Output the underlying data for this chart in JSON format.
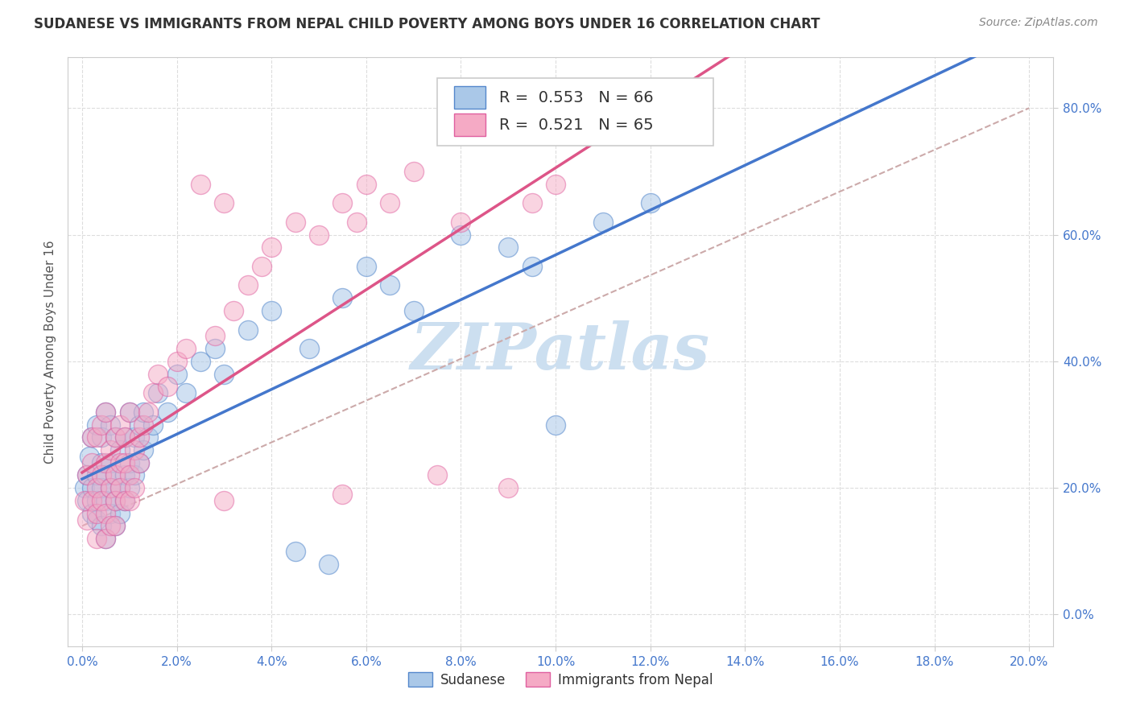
{
  "title": "SUDANESE VS IMMIGRANTS FROM NEPAL CHILD POVERTY AMONG BOYS UNDER 16 CORRELATION CHART",
  "source": "Source: ZipAtlas.com",
  "xlabel_ticks": [
    "0.0%",
    "2.0%",
    "4.0%",
    "6.0%",
    "8.0%",
    "10.0%",
    "12.0%",
    "14.0%",
    "16.0%",
    "18.0%",
    "20.0%"
  ],
  "ylabel_ticks": [
    "0.0%",
    "20.0%",
    "40.0%",
    "60.0%",
    "80.0%"
  ],
  "xlabel_values": [
    0.0,
    0.02,
    0.04,
    0.06,
    0.08,
    0.1,
    0.12,
    0.14,
    0.16,
    0.18,
    0.2
  ],
  "ylabel_values": [
    0.0,
    0.2,
    0.4,
    0.6,
    0.8
  ],
  "xlim": [
    -0.003,
    0.205
  ],
  "ylim": [
    -0.05,
    0.88
  ],
  "ylabel": "Child Poverty Among Boys Under 16",
  "legend_blue_label": "Sudanese",
  "legend_pink_label": "Immigrants from Nepal",
  "blue_R": "0.553",
  "blue_N": "66",
  "pink_R": "0.521",
  "pink_N": "65",
  "blue_color": "#aac8e8",
  "pink_color": "#f5aac5",
  "blue_edge_color": "#5588cc",
  "pink_edge_color": "#e060a0",
  "blue_line_color": "#4477cc",
  "pink_line_color": "#dd5588",
  "ref_line_color": "#ccaaaa",
  "ref_line_style": "--",
  "title_color": "#333333",
  "source_color": "#888888",
  "watermark_color": "#ccdff0",
  "grid_color": "#dddddd",
  "tick_color": "#4477cc",
  "background_color": "#ffffff",
  "blue_scatter_x": [
    0.0005,
    0.001,
    0.001,
    0.0015,
    0.002,
    0.002,
    0.002,
    0.003,
    0.003,
    0.003,
    0.003,
    0.004,
    0.004,
    0.004,
    0.004,
    0.005,
    0.005,
    0.005,
    0.005,
    0.006,
    0.006,
    0.006,
    0.006,
    0.007,
    0.007,
    0.007,
    0.007,
    0.008,
    0.008,
    0.008,
    0.009,
    0.009,
    0.009,
    0.01,
    0.01,
    0.01,
    0.011,
    0.011,
    0.012,
    0.012,
    0.013,
    0.013,
    0.014,
    0.015,
    0.016,
    0.018,
    0.02,
    0.022,
    0.025,
    0.028,
    0.03,
    0.035,
    0.04,
    0.048,
    0.055,
    0.06,
    0.065,
    0.07,
    0.08,
    0.09,
    0.1,
    0.11,
    0.12,
    0.095,
    0.045,
    0.052
  ],
  "blue_scatter_y": [
    0.2,
    0.22,
    0.18,
    0.25,
    0.2,
    0.16,
    0.28,
    0.18,
    0.22,
    0.15,
    0.3,
    0.2,
    0.24,
    0.14,
    0.28,
    0.18,
    0.22,
    0.12,
    0.32,
    0.2,
    0.24,
    0.16,
    0.3,
    0.18,
    0.22,
    0.28,
    0.14,
    0.2,
    0.26,
    0.16,
    0.22,
    0.18,
    0.28,
    0.24,
    0.2,
    0.32,
    0.22,
    0.28,
    0.24,
    0.3,
    0.26,
    0.32,
    0.28,
    0.3,
    0.35,
    0.32,
    0.38,
    0.35,
    0.4,
    0.42,
    0.38,
    0.45,
    0.48,
    0.42,
    0.5,
    0.55,
    0.52,
    0.48,
    0.6,
    0.58,
    0.3,
    0.62,
    0.65,
    0.55,
    0.1,
    0.08
  ],
  "pink_scatter_x": [
    0.0005,
    0.001,
    0.001,
    0.002,
    0.002,
    0.002,
    0.003,
    0.003,
    0.003,
    0.003,
    0.004,
    0.004,
    0.004,
    0.005,
    0.005,
    0.005,
    0.005,
    0.006,
    0.006,
    0.006,
    0.007,
    0.007,
    0.007,
    0.007,
    0.008,
    0.008,
    0.008,
    0.009,
    0.009,
    0.009,
    0.01,
    0.01,
    0.01,
    0.011,
    0.011,
    0.012,
    0.012,
    0.013,
    0.014,
    0.015,
    0.016,
    0.018,
    0.02,
    0.022,
    0.025,
    0.028,
    0.03,
    0.032,
    0.035,
    0.038,
    0.04,
    0.045,
    0.05,
    0.055,
    0.058,
    0.06,
    0.065,
    0.07,
    0.075,
    0.08,
    0.09,
    0.095,
    0.1,
    0.03,
    0.055
  ],
  "pink_scatter_y": [
    0.18,
    0.22,
    0.15,
    0.24,
    0.18,
    0.28,
    0.2,
    0.16,
    0.28,
    0.12,
    0.22,
    0.18,
    0.3,
    0.16,
    0.24,
    0.12,
    0.32,
    0.2,
    0.26,
    0.14,
    0.22,
    0.18,
    0.28,
    0.14,
    0.24,
    0.2,
    0.3,
    0.18,
    0.24,
    0.28,
    0.22,
    0.18,
    0.32,
    0.26,
    0.2,
    0.28,
    0.24,
    0.3,
    0.32,
    0.35,
    0.38,
    0.36,
    0.4,
    0.42,
    0.68,
    0.44,
    0.65,
    0.48,
    0.52,
    0.55,
    0.58,
    0.62,
    0.6,
    0.65,
    0.62,
    0.68,
    0.65,
    0.7,
    0.22,
    0.62,
    0.2,
    0.65,
    0.68,
    0.18,
    0.19
  ]
}
